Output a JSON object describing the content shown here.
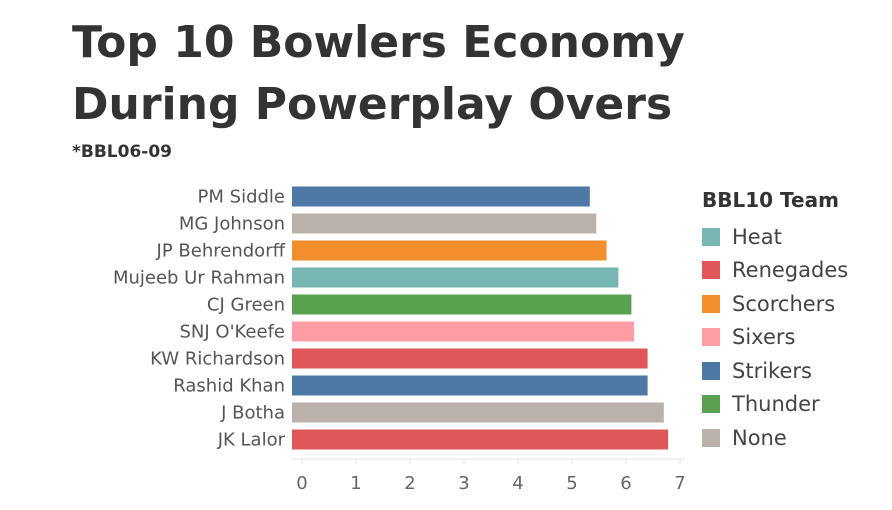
{
  "title_line1": "Top 10 Bowlers Economy",
  "title_line2": "During Powerplay Overs",
  "subtitle": "*BBL06-09",
  "legend": {
    "title": "BBL10 Team",
    "items": [
      {
        "label": "Heat",
        "color": "#76b7b2"
      },
      {
        "label": "Renegades",
        "color": "#e15759"
      },
      {
        "label": "Scorchers",
        "color": "#f28e2b"
      },
      {
        "label": "Sixers",
        "color": "#ff9da7"
      },
      {
        "label": "Strikers",
        "color": "#4e79a7"
      },
      {
        "label": "Thunder",
        "color": "#59a14f"
      },
      {
        "label": "None",
        "color": "#bab0ac"
      }
    ]
  },
  "chart_data": {
    "type": "bar",
    "orientation": "horizontal",
    "categories": [
      "PM Siddle",
      "MG Johnson",
      "JP Behrendorff",
      "Mujeeb Ur Rahman",
      "CJ Green",
      "SNJ O'Keefe",
      "KW Richardson",
      "Rashid Khan",
      "J Botha",
      "JK Lalor"
    ],
    "values": [
      5.33,
      5.45,
      5.64,
      5.86,
      6.1,
      6.15,
      6.4,
      6.4,
      6.7,
      6.78
    ],
    "teams": [
      "Strikers",
      "None",
      "Scorchers",
      "Heat",
      "Thunder",
      "Sixers",
      "Renegades",
      "Strikers",
      "None",
      "Renegades"
    ],
    "xlim": [
      0,
      7
    ],
    "xticks": [
      0,
      1,
      2,
      3,
      4,
      5,
      6,
      7
    ],
    "xlabel": "",
    "ylabel": "",
    "grid": false,
    "legend_position": "right"
  }
}
